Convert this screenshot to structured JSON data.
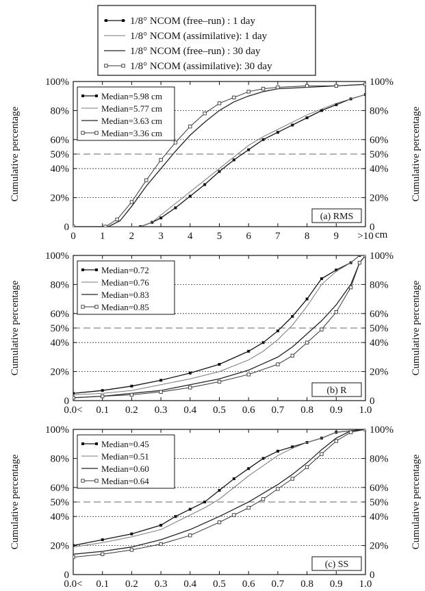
{
  "top_legend": [
    {
      "label": "1/8° NCOM (free–run)    :   1 day",
      "marker": "filled"
    },
    {
      "label": "1/8° NCOM (assimilative):   1 day",
      "marker": "none",
      "color": "#777777"
    },
    {
      "label": "1/8° NCOM (free–run)    :  30 day",
      "marker": "none",
      "color": "#222222"
    },
    {
      "label": "1/8° NCOM (assimilative): 30 day",
      "marker": "open"
    }
  ],
  "y_axis_label": "Cumulative percentage",
  "y_ticks": [
    "0",
    "20%",
    "40%",
    "50%",
    "60%",
    "80%",
    "100%"
  ],
  "chart_data": [
    {
      "type": "line",
      "panel_label": "(a) RMS",
      "unit": "cm",
      "x_ticks": [
        "0",
        "1",
        "2",
        "3",
        "4",
        "5",
        "6",
        "7",
        "8",
        "9",
        ">10"
      ],
      "xlim": [
        0,
        10
      ],
      "ylim": [
        0,
        100
      ],
      "legend": [
        "Median=5.98 cm",
        "Median=5.77 cm",
        "Median=3.63 cm",
        "Median=3.36 cm"
      ],
      "series": [
        {
          "x": [
            0,
            2.3,
            2.7,
            3,
            3.5,
            4,
            4.5,
            5,
            5.5,
            6,
            6.5,
            7,
            7.5,
            8,
            8.5,
            9,
            9.5,
            10
          ],
          "y": [
            0,
            0,
            3,
            6,
            13,
            21,
            29,
            38,
            46,
            53,
            60,
            65,
            70,
            75,
            80,
            84,
            88,
            91
          ]
        },
        {
          "x": [
            0,
            2.3,
            2.7,
            3,
            3.5,
            4,
            4.5,
            5,
            5.5,
            6,
            6.5,
            7,
            7.5,
            8,
            8.5,
            9,
            9.5,
            10
          ],
          "y": [
            0,
            0,
            3,
            8,
            16,
            24,
            32,
            40,
            48,
            56,
            62,
            67,
            72,
            77,
            81,
            85,
            88,
            91
          ]
        },
        {
          "x": [
            0,
            1.2,
            1.6,
            2,
            2.5,
            3,
            3.5,
            4,
            4.5,
            5,
            5.5,
            6,
            6.5,
            7,
            8,
            9,
            10
          ],
          "y": [
            0,
            0,
            4,
            14,
            28,
            40,
            52,
            63,
            72,
            80,
            86,
            90,
            93,
            95,
            96,
            97,
            98
          ]
        },
        {
          "x": [
            0,
            1.1,
            1.5,
            2,
            2.5,
            3,
            3.5,
            4,
            4.5,
            5,
            5.5,
            6,
            6.5,
            7,
            8,
            9,
            10
          ],
          "y": [
            0,
            0,
            5,
            17,
            32,
            46,
            58,
            69,
            78,
            85,
            89,
            93,
            95,
            96,
            97,
            97,
            98
          ]
        }
      ]
    },
    {
      "type": "line",
      "panel_label": "(b) R",
      "unit": "",
      "x_ticks": [
        "0.0<",
        "0.1",
        "0.2",
        "0.3",
        "0.4",
        "0.5",
        "0.6",
        "0.7",
        "0.8",
        "0.9",
        "1.0"
      ],
      "xlim": [
        0,
        1
      ],
      "ylim": [
        0,
        100
      ],
      "legend": [
        "Median=0.72",
        "Median=0.76",
        "Median=0.83",
        "Median=0.85"
      ],
      "series": [
        {
          "x": [
            0,
            0.1,
            0.2,
            0.3,
            0.4,
            0.5,
            0.6,
            0.65,
            0.7,
            0.75,
            0.8,
            0.85,
            0.9,
            0.95,
            0.98,
            1.0
          ],
          "y": [
            5,
            7,
            10,
            14,
            19,
            25,
            34,
            40,
            48,
            58,
            70,
            84,
            90,
            95,
            100,
            100
          ]
        },
        {
          "x": [
            0,
            0.1,
            0.2,
            0.3,
            0.4,
            0.5,
            0.6,
            0.65,
            0.7,
            0.75,
            0.8,
            0.85,
            0.9,
            0.95,
            0.98,
            1.0
          ],
          "y": [
            4,
            5,
            7,
            11,
            15,
            20,
            28,
            34,
            42,
            52,
            65,
            80,
            89,
            95,
            100,
            100
          ]
        },
        {
          "x": [
            0,
            0.1,
            0.2,
            0.3,
            0.4,
            0.5,
            0.6,
            0.7,
            0.75,
            0.8,
            0.85,
            0.9,
            0.95,
            0.98,
            1.0
          ],
          "y": [
            2,
            3,
            5,
            7,
            11,
            15,
            21,
            30,
            37,
            46,
            55,
            66,
            80,
            95,
            100
          ]
        },
        {
          "x": [
            0,
            0.1,
            0.2,
            0.3,
            0.4,
            0.5,
            0.6,
            0.7,
            0.75,
            0.8,
            0.85,
            0.9,
            0.95,
            0.98,
            1.0
          ],
          "y": [
            2,
            3,
            4,
            6,
            9,
            13,
            18,
            25,
            31,
            40,
            49,
            61,
            78,
            95,
            100
          ]
        }
      ]
    },
    {
      "type": "line",
      "panel_label": "(c) SS",
      "unit": "",
      "x_ticks": [
        "0.0<",
        "0.1",
        "0.2",
        "0.3",
        "0.4",
        "0.5",
        "0.6",
        "0.7",
        "0.8",
        "0.9",
        "1.0"
      ],
      "xlim": [
        0,
        1
      ],
      "ylim": [
        0,
        100
      ],
      "legend": [
        "Median=0.45",
        "Median=0.51",
        "Median=0.60",
        "Median=0.64"
      ],
      "series": [
        {
          "x": [
            0,
            0.1,
            0.2,
            0.3,
            0.35,
            0.4,
            0.45,
            0.5,
            0.55,
            0.6,
            0.65,
            0.7,
            0.75,
            0.8,
            0.85,
            0.9,
            1.0
          ],
          "y": [
            20,
            24,
            28,
            34,
            40,
            45,
            50,
            58,
            66,
            73,
            80,
            85,
            88,
            91,
            94,
            98,
            100
          ]
        },
        {
          "x": [
            0,
            0.1,
            0.2,
            0.3,
            0.35,
            0.4,
            0.45,
            0.5,
            0.55,
            0.6,
            0.65,
            0.7,
            0.75,
            0.8,
            0.85,
            0.9,
            1.0
          ],
          "y": [
            19,
            22,
            26,
            31,
            36,
            41,
            46,
            52,
            60,
            68,
            75,
            82,
            87,
            91,
            94,
            98,
            100
          ]
        },
        {
          "x": [
            0,
            0.1,
            0.2,
            0.3,
            0.4,
            0.5,
            0.55,
            0.6,
            0.65,
            0.7,
            0.75,
            0.8,
            0.85,
            0.9,
            0.95,
            1.0
          ],
          "y": [
            14,
            16,
            19,
            24,
            31,
            40,
            45,
            50,
            56,
            62,
            69,
            77,
            86,
            94,
            99,
            100
          ]
        },
        {
          "x": [
            0,
            0.1,
            0.2,
            0.3,
            0.4,
            0.5,
            0.55,
            0.6,
            0.65,
            0.7,
            0.75,
            0.8,
            0.85,
            0.9,
            0.95,
            1.0
          ],
          "y": [
            12,
            14,
            17,
            21,
            27,
            36,
            41,
            46,
            52,
            59,
            66,
            74,
            83,
            92,
            98,
            100
          ]
        }
      ]
    }
  ]
}
